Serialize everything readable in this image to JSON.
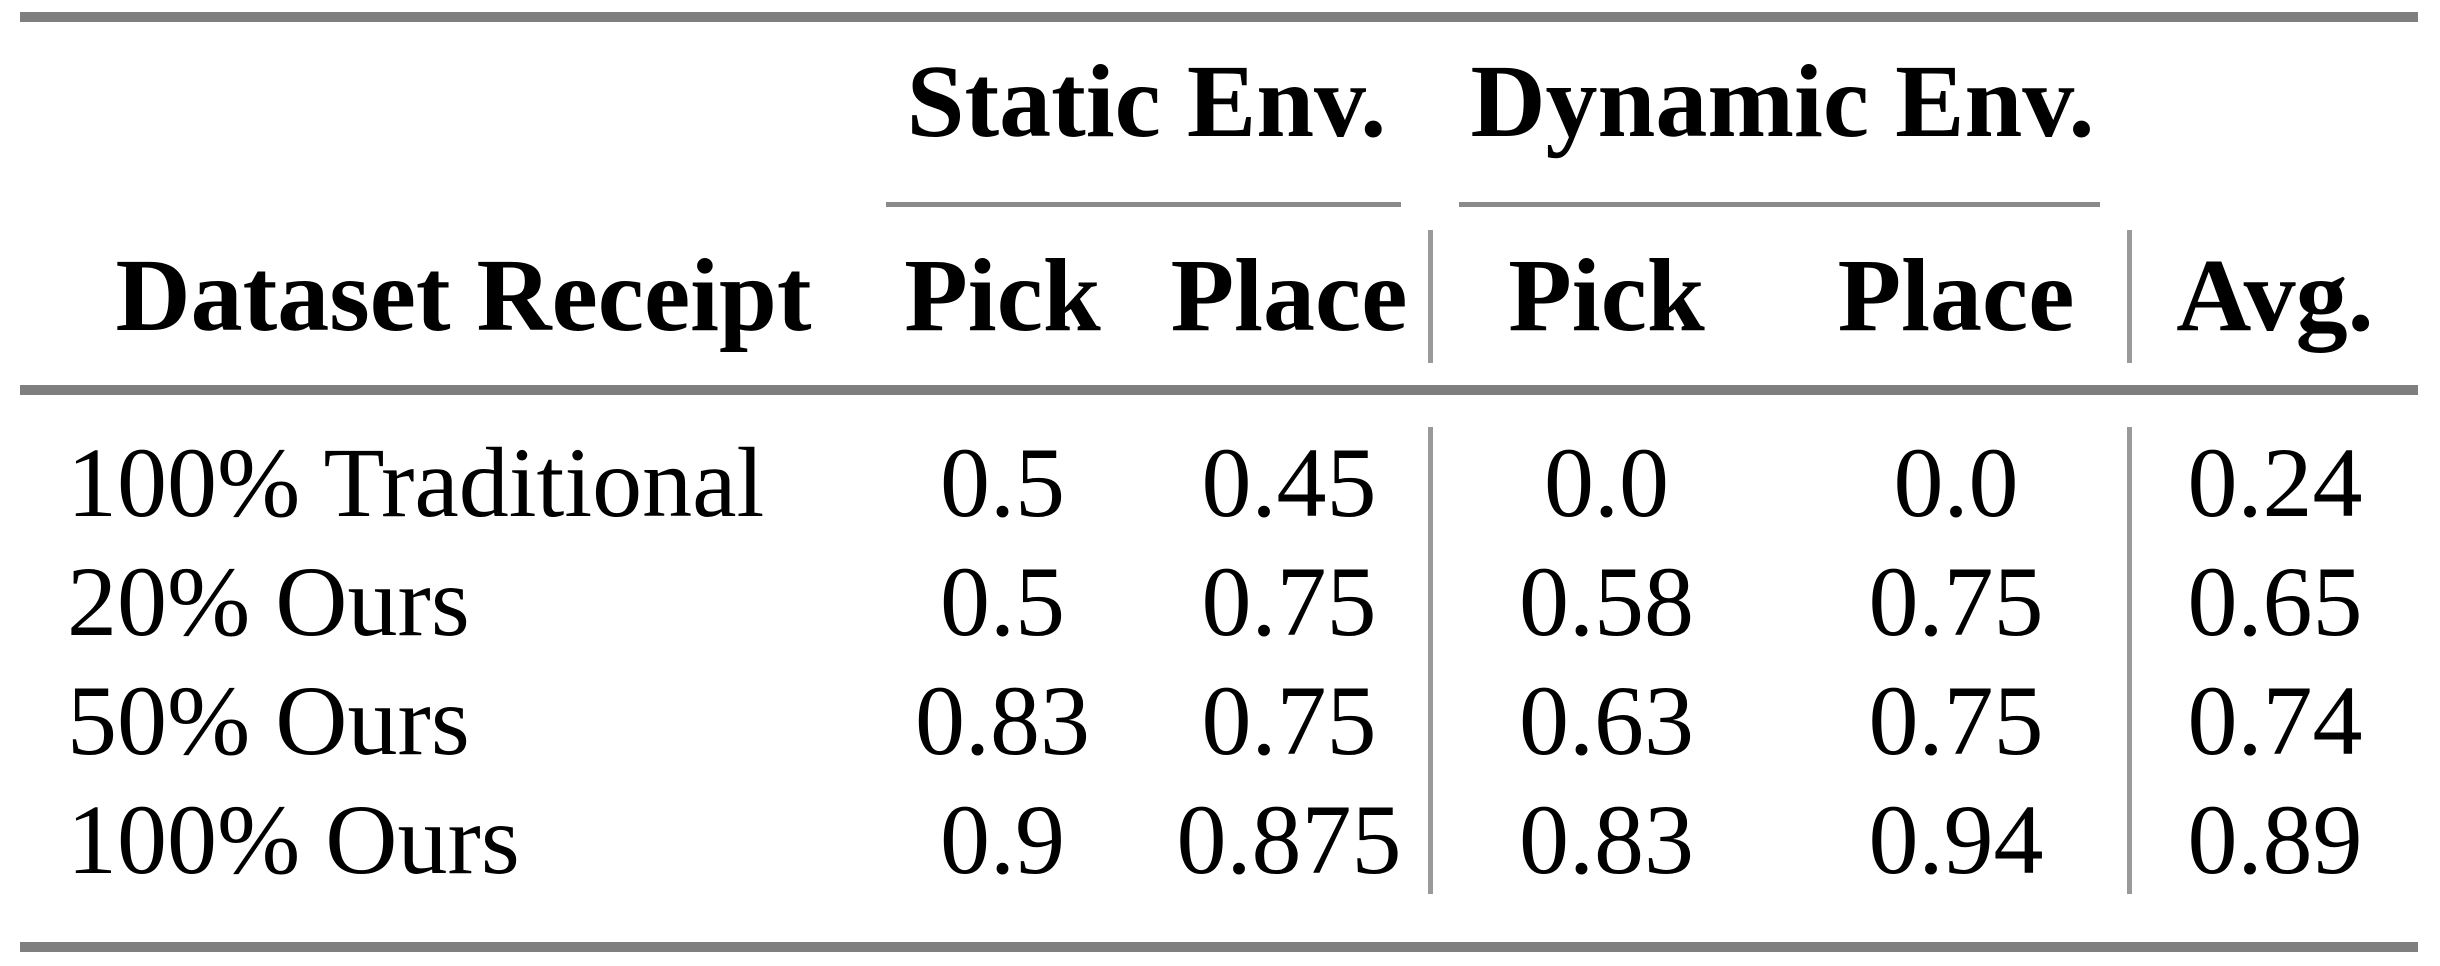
{
  "table": {
    "groups": [
      {
        "label": "Static Env."
      },
      {
        "label": "Dynamic Env."
      }
    ],
    "columns": [
      "Dataset Receipt",
      "Pick",
      "Place",
      "Pick",
      "Place",
      "Avg."
    ],
    "rows": [
      [
        "100% Traditional",
        "0.5",
        "0.45",
        "0.0",
        "0.0",
        "0.24"
      ],
      [
        "20% Ours",
        "0.5",
        "0.75",
        "0.58",
        "0.75",
        "0.65"
      ],
      [
        "50% Ours",
        "0.83",
        "0.75",
        "0.63",
        "0.75",
        "0.74"
      ],
      [
        "100% Ours",
        "0.9",
        "0.875",
        "0.83",
        "0.94",
        "0.89"
      ]
    ],
    "colors": {
      "rule": "#7f7f7f",
      "cmidrule": "#8a8a8a",
      "divider": "#9a9a9a",
      "text": "#000000",
      "background": "#ffffff"
    }
  },
  "chart_data": {
    "type": "table",
    "title": "",
    "group_headers": [
      {
        "label": "Static Env.",
        "spans": [
          "Pick",
          "Place"
        ]
      },
      {
        "label": "Dynamic Env.",
        "spans": [
          "Pick",
          "Place"
        ]
      }
    ],
    "columns": [
      "Dataset Receipt",
      "Static Pick",
      "Static Place",
      "Dynamic Pick",
      "Dynamic Place",
      "Avg."
    ],
    "rows": [
      {
        "dataset_receipt": "100% Traditional",
        "static_pick": 0.5,
        "static_place": 0.45,
        "dynamic_pick": 0.0,
        "dynamic_place": 0.0,
        "avg": 0.24
      },
      {
        "dataset_receipt": "20% Ours",
        "static_pick": 0.5,
        "static_place": 0.75,
        "dynamic_pick": 0.58,
        "dynamic_place": 0.75,
        "avg": 0.65
      },
      {
        "dataset_receipt": "50% Ours",
        "static_pick": 0.83,
        "static_place": 0.75,
        "dynamic_pick": 0.63,
        "dynamic_place": 0.75,
        "avg": 0.74
      },
      {
        "dataset_receipt": "100% Ours",
        "static_pick": 0.9,
        "static_place": 0.875,
        "dynamic_pick": 0.83,
        "dynamic_place": 0.94,
        "avg": 0.89
      }
    ]
  }
}
